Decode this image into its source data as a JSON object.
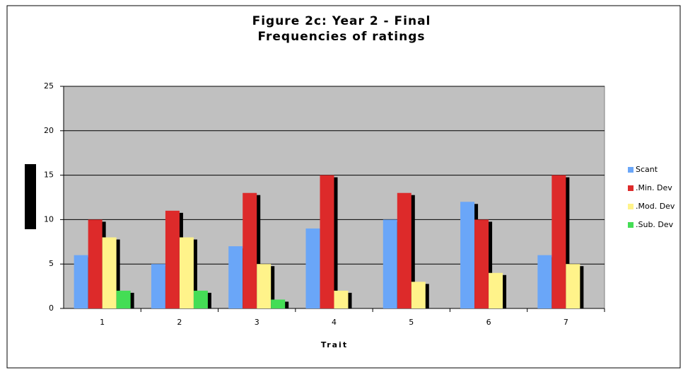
{
  "chart_data": {
    "type": "bar",
    "title": [
      "Figure 2c: Year 2 - Final",
      "Frequencies of ratings"
    ],
    "x_label": "Trait",
    "categories": [
      "1",
      "2",
      "3",
      "4",
      "5",
      "6",
      "7"
    ],
    "series": [
      {
        "name": "Scant",
        "color": "#6aa6f8",
        "values": [
          6,
          5,
          7,
          9,
          10,
          12,
          6
        ]
      },
      {
        "name": ".Min. Dev",
        "color": "#dd2a2a",
        "values": [
          10,
          11,
          13,
          15,
          13,
          10,
          15
        ]
      },
      {
        "name": ".Mod. Dev",
        "color": "#fff38a",
        "values": [
          8,
          8,
          5,
          2,
          3,
          4,
          5
        ]
      },
      {
        "name": ".Sub. Dev",
        "color": "#44dd55",
        "values": [
          2,
          2,
          1,
          0,
          0,
          0,
          0
        ]
      }
    ],
    "ylim": [
      0,
      25
    ],
    "yticks": [
      0,
      5,
      10,
      15,
      20,
      25
    ],
    "grid": true,
    "legend": "right"
  }
}
